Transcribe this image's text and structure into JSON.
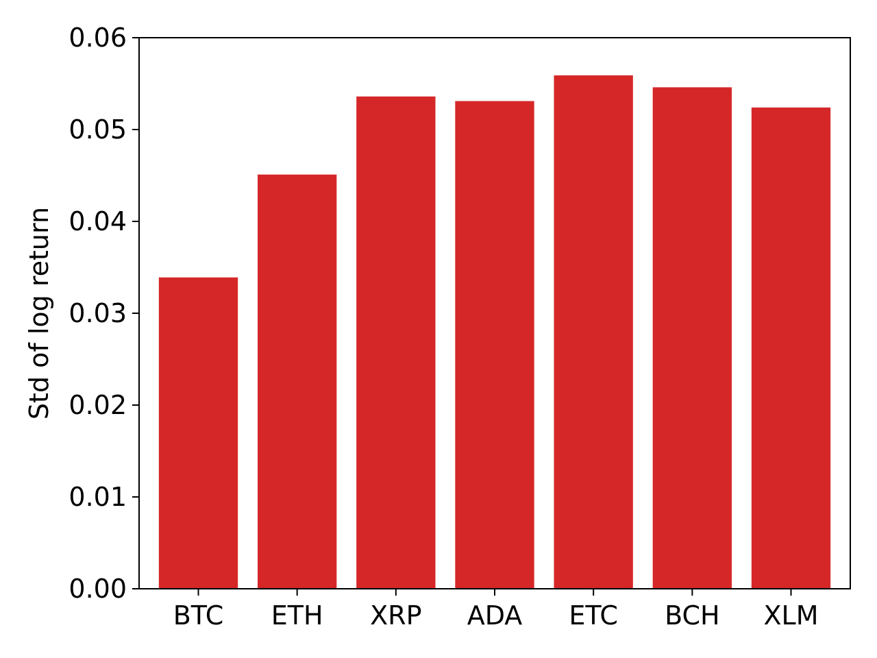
{
  "chart_data": {
    "type": "bar",
    "title": "",
    "xlabel": "",
    "ylabel": "Std of log return",
    "categories": [
      "BTC",
      "ETH",
      "XRP",
      "ADA",
      "ETC",
      "BCH",
      "XLM"
    ],
    "values": [
      0.0339,
      0.0451,
      0.0536,
      0.0531,
      0.0559,
      0.0546,
      0.0524
    ],
    "ylim": [
      0,
      0.06
    ],
    "yticks": [
      0.0,
      0.01,
      0.02,
      0.03,
      0.04,
      0.05,
      0.06
    ],
    "ytick_labels": [
      "0.00",
      "0.01",
      "0.02",
      "0.03",
      "0.04",
      "0.05",
      "0.06"
    ],
    "grid": false,
    "legend": "none",
    "bar_color": "#d62728"
  }
}
